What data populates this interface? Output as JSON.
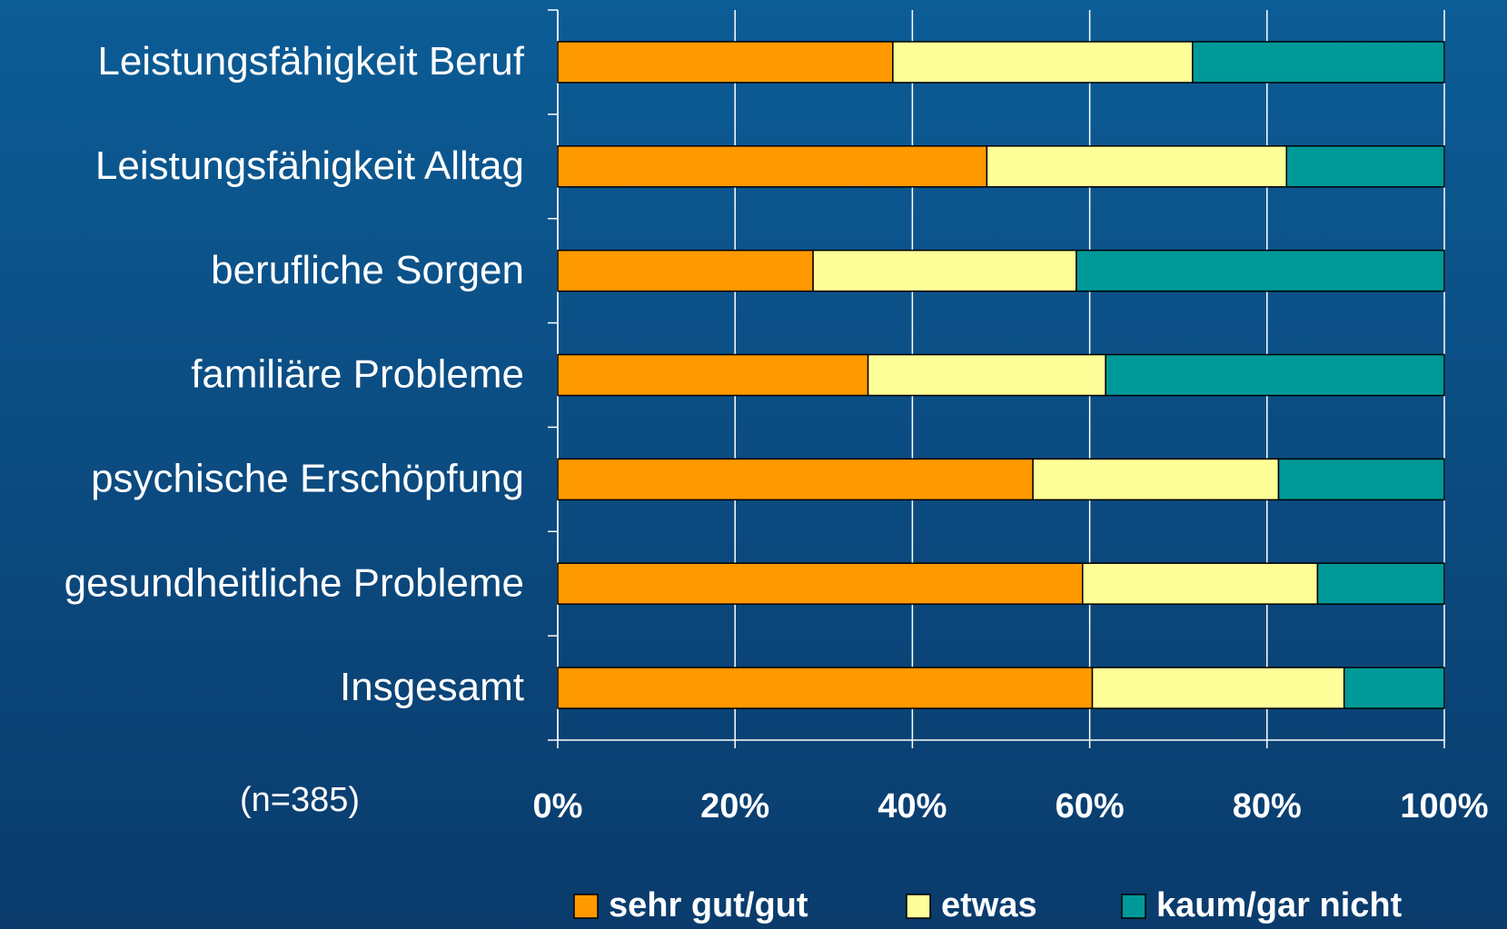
{
  "chart_data": {
    "type": "stacked-bar-horizontal",
    "categories": [
      "Leistungsfähigkeit Beruf",
      "Leistungsfähigkeit Alltag",
      "berufliche Sorgen",
      "familiäre Probleme",
      "psychische Erschöpfung",
      "gesundheitliche Probleme",
      "Insgesamt"
    ],
    "series": [
      {
        "name": "sehr gut/gut",
        "color": "#ff9900",
        "values": [
          37.8,
          48.4,
          28.8,
          35.0,
          53.6,
          59.2,
          60.3
        ]
      },
      {
        "name": "etwas",
        "color": "#ffff99",
        "values": [
          33.8,
          33.8,
          29.7,
          26.8,
          27.7,
          26.5,
          28.4
        ]
      },
      {
        "name": "kaum/gar nicht",
        "color": "#009999",
        "values": [
          28.4,
          17.8,
          41.5,
          38.2,
          18.7,
          14.3,
          11.3
        ]
      }
    ],
    "xlim": [
      0,
      100
    ],
    "xticks": [
      {
        "value": 0,
        "label": "0%"
      },
      {
        "value": 20,
        "label": "20%"
      },
      {
        "value": 40,
        "label": "40%"
      },
      {
        "value": 60,
        "label": "60%"
      },
      {
        "value": 80,
        "label": "80%"
      },
      {
        "value": 100,
        "label": "100%"
      }
    ],
    "grid": true,
    "annotation": "(n=385)"
  }
}
